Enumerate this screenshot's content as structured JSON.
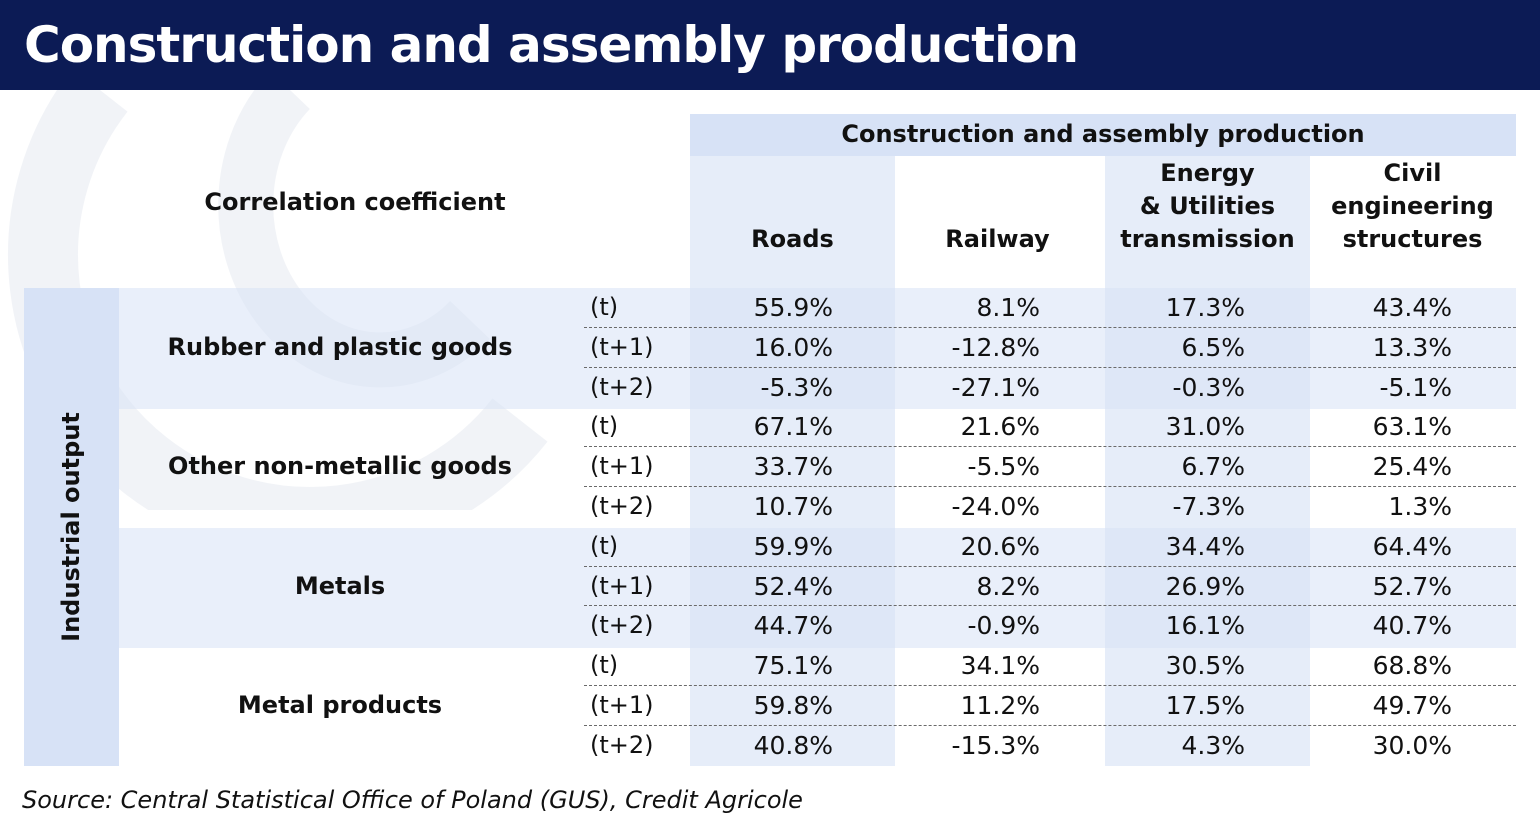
{
  "title": "Construction and assembly production",
  "header": {
    "super": "Construction and assembly production",
    "row_label": "Correlation coefficient",
    "side_label": "Industrial output",
    "columns": [
      [
        "Roads"
      ],
      [
        "Railway"
      ],
      [
        "Energy",
        "& Utilities",
        "transmission"
      ],
      [
        "Civil",
        "engineering",
        "structures"
      ]
    ]
  },
  "lags": [
    "(t)",
    "(t+1)",
    "(t+2)"
  ],
  "chart_data": {
    "type": "table",
    "columns": [
      "Roads",
      "Railway",
      "Energy & Utilities transmission",
      "Civil engineering structures"
    ],
    "groups": [
      {
        "name": "Rubber and plastic goods",
        "rows": [
          {
            "lag": "(t)",
            "values": [
              "55.9%",
              "8.1%",
              "17.3%",
              "43.4%"
            ]
          },
          {
            "lag": "(t+1)",
            "values": [
              "16.0%",
              "-12.8%",
              "6.5%",
              "13.3%"
            ]
          },
          {
            "lag": "(t+2)",
            "values": [
              "-5.3%",
              "-27.1%",
              "-0.3%",
              "-5.1%"
            ]
          }
        ]
      },
      {
        "name": "Other non-metallic goods",
        "rows": [
          {
            "lag": "(t)",
            "values": [
              "67.1%",
              "21.6%",
              "31.0%",
              "63.1%"
            ]
          },
          {
            "lag": "(t+1)",
            "values": [
              "33.7%",
              "-5.5%",
              "6.7%",
              "25.4%"
            ]
          },
          {
            "lag": "(t+2)",
            "values": [
              "10.7%",
              "-24.0%",
              "-7.3%",
              "1.3%"
            ]
          }
        ]
      },
      {
        "name": "Metals",
        "rows": [
          {
            "lag": "(t)",
            "values": [
              "59.9%",
              "20.6%",
              "34.4%",
              "64.4%"
            ]
          },
          {
            "lag": "(t+1)",
            "values": [
              "52.4%",
              "8.2%",
              "26.9%",
              "52.7%"
            ]
          },
          {
            "lag": "(t+2)",
            "values": [
              "44.7%",
              "-0.9%",
              "16.1%",
              "40.7%"
            ]
          }
        ]
      },
      {
        "name": "Metal products",
        "rows": [
          {
            "lag": "(t)",
            "values": [
              "75.1%",
              "34.1%",
              "30.5%",
              "68.8%"
            ]
          },
          {
            "lag": "(t+1)",
            "values": [
              "59.8%",
              "11.2%",
              "17.5%",
              "49.7%"
            ]
          },
          {
            "lag": "(t+2)",
            "values": [
              "40.8%",
              "-15.3%",
              "4.3%",
              "30.0%"
            ]
          }
        ]
      }
    ]
  },
  "source": "Source: Central Statistical Office of Poland (GUS), Credit Agricole",
  "colors": {
    "header_bg": "#0c1b55",
    "band_light": "#d7e2f6",
    "band_lighter": "#e6edf9"
  }
}
